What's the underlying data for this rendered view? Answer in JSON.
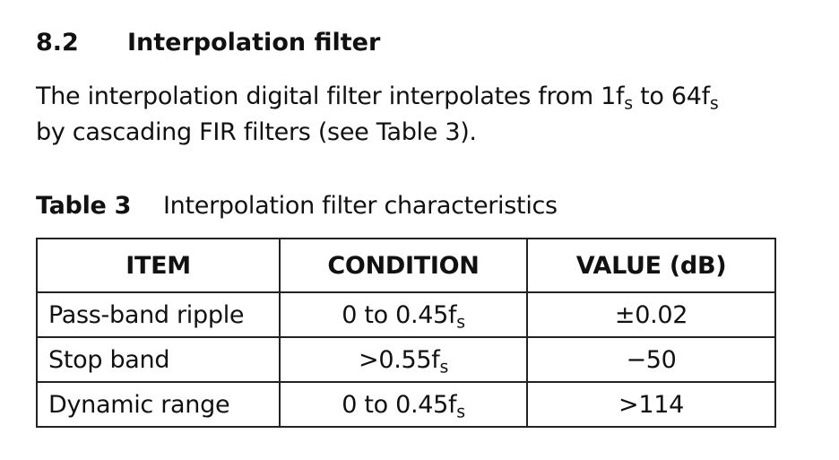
{
  "section": {
    "number": "8.2",
    "title": "Interpolation filter"
  },
  "paragraph": {
    "lines": [
      [
        {
          "text": "The interpolation digital filter interpolates from 1f",
          "sub": "s"
        },
        {
          "text": " to 64f",
          "sub": "s"
        }
      ],
      [
        {
          "text": "by cascading FIR filters (see Table 3)."
        }
      ]
    ]
  },
  "table": {
    "label": "Table 3",
    "caption": "Interpolation filter characteristics",
    "header": [
      "ITEM",
      "CONDITION",
      "VALUE (dB)"
    ],
    "rows": [
      [
        {
          "text": "Pass-band ripple"
        },
        {
          "text": "0 to 0.45f",
          "sub": "s"
        },
        {
          "text": "±0.02"
        }
      ],
      [
        {
          "text": "Stop band"
        },
        {
          "text": ">0.55f",
          "sub": "s"
        },
        {
          "text": "−50"
        }
      ],
      [
        {
          "text": "Dynamic range"
        },
        {
          "text": "0 to 0.45f",
          "sub": "s"
        },
        {
          "text": ">114"
        }
      ]
    ]
  }
}
